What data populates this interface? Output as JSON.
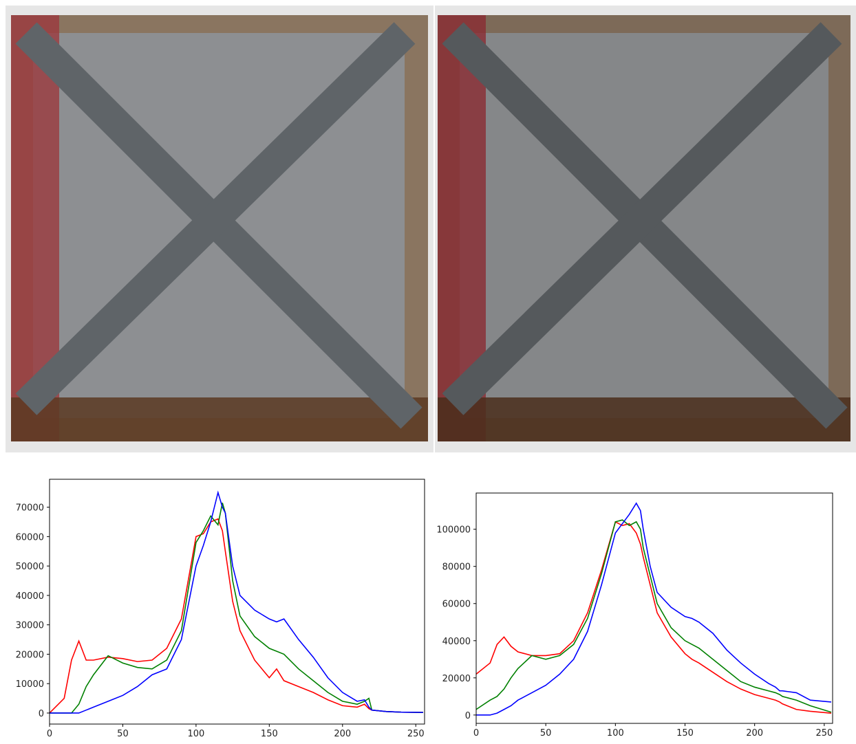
{
  "chart_data": [
    {
      "type": "line",
      "x": [
        0,
        10,
        15,
        20,
        25,
        30,
        40,
        50,
        60,
        70,
        80,
        90,
        100,
        105,
        110,
        115,
        118,
        120,
        125,
        130,
        140,
        150,
        155,
        160,
        170,
        180,
        190,
        200,
        210,
        215,
        218,
        220,
        230,
        240,
        255
      ],
      "series": [
        {
          "color": "#ff0000",
          "values": [
            0,
            5000,
            18000,
            24500,
            18000,
            18000,
            19000,
            18500,
            17500,
            18000,
            22000,
            32000,
            60000,
            61000,
            65000,
            66000,
            62000,
            55000,
            38000,
            28000,
            18000,
            12000,
            15000,
            11000,
            9000,
            7000,
            4500,
            2500,
            2000,
            3000,
            1500,
            1000,
            500,
            300,
            200
          ]
        },
        {
          "color": "#008000",
          "values": [
            0,
            0,
            0,
            3000,
            9000,
            13000,
            19500,
            17000,
            15500,
            15000,
            18000,
            28000,
            58000,
            62000,
            67000,
            64000,
            71500,
            68000,
            45000,
            33000,
            26000,
            22000,
            21000,
            20000,
            15000,
            11000,
            7000,
            4000,
            3000,
            4000,
            5000,
            1000,
            500,
            300,
            200
          ]
        },
        {
          "color": "#0000ff",
          "values": [
            0,
            0,
            0,
            0,
            1000,
            2000,
            4000,
            6000,
            9000,
            13000,
            15000,
            25000,
            50000,
            57000,
            65000,
            75000,
            70000,
            68000,
            50000,
            40000,
            35000,
            32000,
            31000,
            32000,
            25000,
            19000,
            12000,
            7000,
            4000,
            4500,
            2000,
            1000,
            500,
            300,
            200
          ]
        }
      ],
      "xlim": [
        0,
        256
      ],
      "xticks": [
        0,
        50,
        100,
        150,
        200,
        250
      ],
      "ylim": [
        -3750,
        79500
      ],
      "yticks": [
        0,
        10000,
        20000,
        30000,
        40000,
        50000,
        60000,
        70000
      ]
    },
    {
      "type": "line",
      "x": [
        0,
        10,
        15,
        20,
        25,
        30,
        40,
        50,
        60,
        70,
        80,
        90,
        100,
        105,
        110,
        115,
        118,
        120,
        125,
        130,
        140,
        150,
        155,
        160,
        170,
        180,
        190,
        200,
        210,
        215,
        218,
        220,
        230,
        240,
        255
      ],
      "series": [
        {
          "color": "#ff0000",
          "values": [
            22000,
            28000,
            38000,
            42000,
            37000,
            34000,
            32000,
            32000,
            33000,
            40000,
            55000,
            78000,
            104000,
            102000,
            103000,
            98000,
            92000,
            85000,
            70000,
            55000,
            42000,
            33000,
            30000,
            28000,
            23000,
            18000,
            14000,
            11000,
            9000,
            8000,
            7000,
            6000,
            3000,
            2000,
            1000
          ]
        },
        {
          "color": "#008000",
          "values": [
            3000,
            8000,
            10000,
            14000,
            20000,
            25000,
            32000,
            30000,
            32000,
            38000,
            52000,
            76000,
            104000,
            105000,
            102000,
            104000,
            100000,
            90000,
            75000,
            60000,
            47000,
            40000,
            38000,
            36000,
            30000,
            24000,
            18000,
            15000,
            13000,
            12000,
            11000,
            10000,
            8000,
            5000,
            1500
          ]
        },
        {
          "color": "#0000ff",
          "values": [
            0,
            0,
            1000,
            3000,
            5000,
            8000,
            12000,
            16000,
            22000,
            30000,
            45000,
            70000,
            98000,
            103000,
            108000,
            114000,
            110000,
            100000,
            80000,
            66000,
            58000,
            53000,
            52000,
            50000,
            44000,
            35000,
            28000,
            22000,
            17000,
            15000,
            13000,
            13000,
            12000,
            8000,
            7000
          ]
        }
      ],
      "xlim": [
        0,
        256
      ],
      "xticks": [
        0,
        50,
        100,
        150,
        200,
        250
      ],
      "ylim": [
        -4500,
        119500
      ],
      "yticks": [
        0,
        20000,
        40000,
        60000,
        80000,
        100000
      ]
    }
  ]
}
